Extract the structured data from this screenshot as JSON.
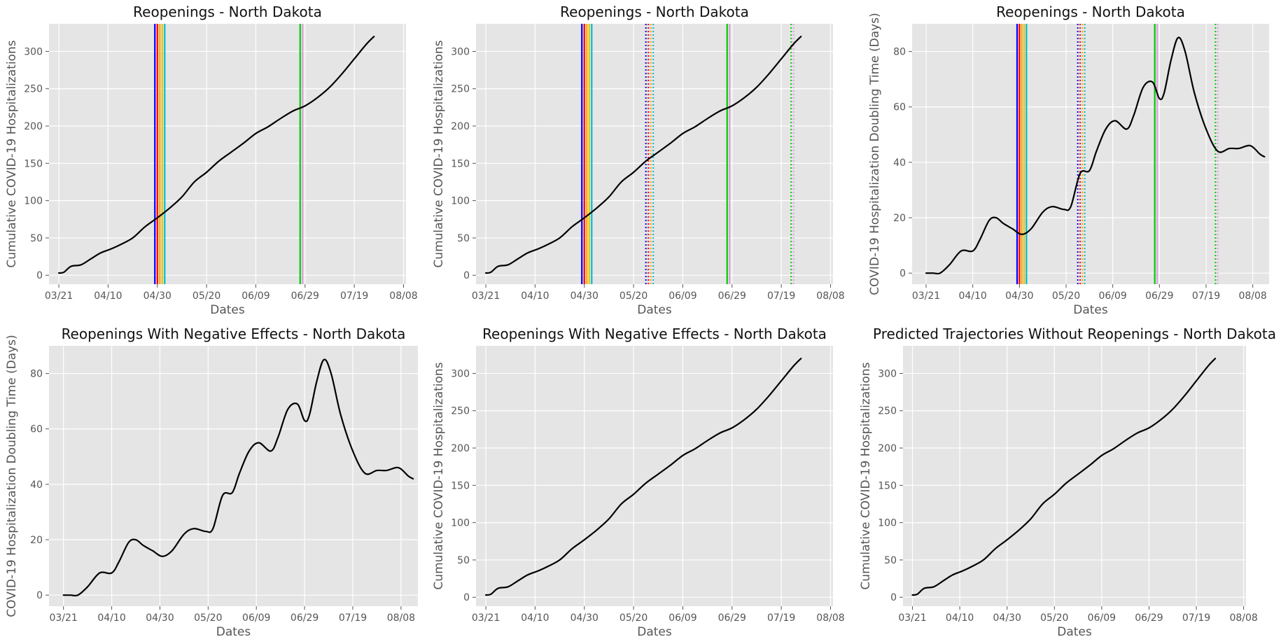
{
  "colors": {
    "panel_bg": "#e5e5e5",
    "grid": "#ffffff",
    "line": "#000000",
    "tick_text": "#555555",
    "title_text": "#111111"
  },
  "reference_lines": [
    {
      "date": "2020-04-29",
      "color": "#0000ff",
      "style": "solid"
    },
    {
      "date": "2020-04-30",
      "color": "#ff0000",
      "style": "solid"
    },
    {
      "date": "2020-05-01",
      "color": "#ffa500",
      "style": "solid"
    },
    {
      "date": "2020-05-02",
      "color": "#e6c700",
      "style": "solid"
    },
    {
      "date": "2020-05-03",
      "color": "#00bcd4",
      "style": "solid"
    },
    {
      "date": "2020-05-25",
      "color": "#0000ff",
      "style": "dotted"
    },
    {
      "date": "2020-05-26",
      "color": "#ff0000",
      "style": "dotted"
    },
    {
      "date": "2020-05-27",
      "color": "#ffa500",
      "style": "dotted"
    },
    {
      "date": "2020-05-28",
      "color": "#00bcd4",
      "style": "dotted"
    },
    {
      "date": "2020-06-27",
      "color": "#00cc00",
      "style": "solid"
    },
    {
      "date": "2020-06-28",
      "color": "#dda0dd",
      "style": "solid"
    },
    {
      "date": "2020-07-23",
      "color": "#00cc00",
      "style": "dotted"
    },
    {
      "date": "2020-07-24",
      "color": "#dda0dd",
      "style": "dotted"
    }
  ],
  "chart_data": [
    {
      "type": "line",
      "title": "Reopenings - North Dakota",
      "xlabel": "Dates",
      "ylabel": "Cumulative COVID-19 Hospitalizations",
      "xticks": [
        "03/21",
        "04/10",
        "04/30",
        "05/20",
        "06/09",
        "06/29",
        "07/19",
        "08/08"
      ],
      "yticks": [
        0,
        50,
        100,
        150,
        200,
        250,
        300
      ],
      "xlim": [
        "2020-03-17",
        "2020-08-09"
      ],
      "ylim": [
        -12,
        337
      ],
      "grid": true,
      "reference_line_dates": [
        "2020-04-29",
        "2020-04-30",
        "2020-05-01",
        "2020-05-02",
        "2020-05-03",
        "2020-06-27",
        "2020-06-28"
      ],
      "series": [
        {
          "x": [
            "2020-03-21",
            "2020-03-23",
            "2020-03-26",
            "2020-03-30",
            "2020-04-03",
            "2020-04-07",
            "2020-04-11",
            "2020-04-15",
            "2020-04-20",
            "2020-04-25",
            "2020-04-30",
            "2020-05-05",
            "2020-05-10",
            "2020-05-15",
            "2020-05-20",
            "2020-05-25",
            "2020-05-30",
            "2020-06-04",
            "2020-06-09",
            "2020-06-14",
            "2020-06-19",
            "2020-06-24",
            "2020-06-29",
            "2020-07-04",
            "2020-07-09",
            "2020-07-14",
            "2020-07-19",
            "2020-07-24",
            "2020-07-27"
          ],
          "y": [
            3,
            4,
            12,
            14,
            22,
            30,
            35,
            41,
            50,
            65,
            77,
            90,
            105,
            125,
            138,
            153,
            165,
            177,
            190,
            199,
            210,
            220,
            227,
            238,
            252,
            270,
            290,
            310,
            320
          ]
        }
      ]
    },
    {
      "type": "line",
      "title": "Reopenings - North Dakota",
      "xlabel": "Dates",
      "ylabel": "Cumulative COVID-19 Hospitalizations",
      "xticks": [
        "03/21",
        "04/10",
        "04/30",
        "05/20",
        "06/09",
        "06/29",
        "07/19",
        "08/08"
      ],
      "yticks": [
        0,
        50,
        100,
        150,
        200,
        250,
        300
      ],
      "xlim": [
        "2020-03-17",
        "2020-08-09"
      ],
      "ylim": [
        -12,
        337
      ],
      "grid": true,
      "reference_line_dates": [
        "2020-04-29",
        "2020-04-30",
        "2020-05-01",
        "2020-05-02",
        "2020-05-03",
        "2020-05-25",
        "2020-05-26",
        "2020-05-27",
        "2020-05-28",
        "2020-06-27",
        "2020-06-28",
        "2020-07-23",
        "2020-07-24"
      ],
      "series": [
        {
          "x": [
            "2020-03-21",
            "2020-03-23",
            "2020-03-26",
            "2020-03-30",
            "2020-04-03",
            "2020-04-07",
            "2020-04-11",
            "2020-04-15",
            "2020-04-20",
            "2020-04-25",
            "2020-04-30",
            "2020-05-05",
            "2020-05-10",
            "2020-05-15",
            "2020-05-20",
            "2020-05-25",
            "2020-05-30",
            "2020-06-04",
            "2020-06-09",
            "2020-06-14",
            "2020-06-19",
            "2020-06-24",
            "2020-06-29",
            "2020-07-04",
            "2020-07-09",
            "2020-07-14",
            "2020-07-19",
            "2020-07-24",
            "2020-07-27"
          ],
          "y": [
            3,
            4,
            12,
            14,
            22,
            30,
            35,
            41,
            50,
            65,
            77,
            90,
            105,
            125,
            138,
            153,
            165,
            177,
            190,
            199,
            210,
            220,
            227,
            238,
            252,
            270,
            290,
            310,
            320
          ]
        }
      ]
    },
    {
      "type": "line",
      "title": "Reopenings - North Dakota",
      "xlabel": "Dates",
      "ylabel": "COVID-19 Hospitalization Doubling Time (Days)",
      "xticks": [
        "03/21",
        "04/10",
        "04/30",
        "05/20",
        "06/09",
        "06/29",
        "07/19",
        "08/08"
      ],
      "yticks": [
        0,
        20,
        40,
        60,
        80
      ],
      "xlim": [
        "2020-03-15",
        "2020-08-15"
      ],
      "ylim": [
        -4,
        90
      ],
      "grid": true,
      "reference_line_dates": [
        "2020-04-29",
        "2020-04-30",
        "2020-05-01",
        "2020-05-02",
        "2020-05-03",
        "2020-05-25",
        "2020-05-26",
        "2020-05-27",
        "2020-05-28",
        "2020-06-27",
        "2020-06-28",
        "2020-07-23",
        "2020-07-24"
      ],
      "series": [
        {
          "x": [
            "2020-03-21",
            "2020-03-24",
            "2020-03-27",
            "2020-03-31",
            "2020-04-05",
            "2020-04-10",
            "2020-04-13",
            "2020-04-17",
            "2020-04-20",
            "2020-04-23",
            "2020-04-27",
            "2020-05-01",
            "2020-05-05",
            "2020-05-10",
            "2020-05-14",
            "2020-05-19",
            "2020-05-22",
            "2020-05-26",
            "2020-05-30",
            "2020-06-02",
            "2020-06-06",
            "2020-06-10",
            "2020-06-15",
            "2020-06-18",
            "2020-06-22",
            "2020-06-26",
            "2020-06-29",
            "2020-07-01",
            "2020-07-04",
            "2020-07-07",
            "2020-07-10",
            "2020-07-14",
            "2020-07-19",
            "2020-07-24",
            "2020-07-29",
            "2020-08-02",
            "2020-08-07",
            "2020-08-11",
            "2020-08-13"
          ],
          "y": [
            0,
            0,
            0,
            3,
            8,
            8,
            12,
            19,
            20,
            18,
            16,
            14,
            16,
            22,
            24,
            23,
            24,
            36,
            37,
            44,
            52,
            55,
            52,
            57,
            67,
            69,
            63,
            65,
            77,
            85,
            80,
            65,
            52,
            44,
            45,
            45,
            46,
            43,
            42
          ]
        }
      ]
    },
    {
      "type": "line",
      "title": "Reopenings With Negative Effects - North Dakota",
      "xlabel": "Dates",
      "ylabel": "COVID-19 Hospitalization Doubling Time (Days)",
      "xticks": [
        "03/21",
        "04/10",
        "04/30",
        "05/20",
        "06/09",
        "06/29",
        "07/19",
        "08/08"
      ],
      "yticks": [
        0,
        20,
        40,
        60,
        80
      ],
      "xlim": [
        "2020-03-15",
        "2020-08-15"
      ],
      "ylim": [
        -4,
        90
      ],
      "grid": true,
      "reference_line_dates": [],
      "series": [
        {
          "x": [
            "2020-03-21",
            "2020-03-24",
            "2020-03-27",
            "2020-03-31",
            "2020-04-05",
            "2020-04-10",
            "2020-04-13",
            "2020-04-17",
            "2020-04-20",
            "2020-04-23",
            "2020-04-27",
            "2020-05-01",
            "2020-05-05",
            "2020-05-10",
            "2020-05-14",
            "2020-05-19",
            "2020-05-22",
            "2020-05-26",
            "2020-05-30",
            "2020-06-02",
            "2020-06-06",
            "2020-06-10",
            "2020-06-15",
            "2020-06-18",
            "2020-06-22",
            "2020-06-26",
            "2020-06-29",
            "2020-07-01",
            "2020-07-04",
            "2020-07-07",
            "2020-07-10",
            "2020-07-14",
            "2020-07-19",
            "2020-07-24",
            "2020-07-29",
            "2020-08-02",
            "2020-08-07",
            "2020-08-11",
            "2020-08-13"
          ],
          "y": [
            0,
            0,
            0,
            3,
            8,
            8,
            12,
            19,
            20,
            18,
            16,
            14,
            16,
            22,
            24,
            23,
            24,
            36,
            37,
            44,
            52,
            55,
            52,
            57,
            67,
            69,
            63,
            65,
            77,
            85,
            80,
            65,
            52,
            44,
            45,
            45,
            46,
            43,
            42
          ]
        }
      ]
    },
    {
      "type": "line",
      "title": "Reopenings With Negative Effects - North Dakota",
      "xlabel": "Dates",
      "ylabel": "Cumulative COVID-19 Hospitalizations",
      "xticks": [
        "03/21",
        "04/10",
        "04/30",
        "05/20",
        "06/09",
        "06/29",
        "07/19",
        "08/08"
      ],
      "yticks": [
        0,
        50,
        100,
        150,
        200,
        250,
        300
      ],
      "xlim": [
        "2020-03-17",
        "2020-08-09"
      ],
      "ylim": [
        -12,
        337
      ],
      "grid": true,
      "reference_line_dates": [],
      "series": [
        {
          "x": [
            "2020-03-21",
            "2020-03-23",
            "2020-03-26",
            "2020-03-30",
            "2020-04-03",
            "2020-04-07",
            "2020-04-11",
            "2020-04-15",
            "2020-04-20",
            "2020-04-25",
            "2020-04-30",
            "2020-05-05",
            "2020-05-10",
            "2020-05-15",
            "2020-05-20",
            "2020-05-25",
            "2020-05-30",
            "2020-06-04",
            "2020-06-09",
            "2020-06-14",
            "2020-06-19",
            "2020-06-24",
            "2020-06-29",
            "2020-07-04",
            "2020-07-09",
            "2020-07-14",
            "2020-07-19",
            "2020-07-24",
            "2020-07-27"
          ],
          "y": [
            3,
            4,
            12,
            14,
            22,
            30,
            35,
            41,
            50,
            65,
            77,
            90,
            105,
            125,
            138,
            153,
            165,
            177,
            190,
            199,
            210,
            220,
            227,
            238,
            252,
            270,
            290,
            310,
            320
          ]
        }
      ]
    },
    {
      "type": "line",
      "title": "Predicted Trajectories Without Reopenings - North Dakota",
      "xlabel": "Dates",
      "ylabel": "Cumulative COVID-19 Hospitalizations",
      "xticks": [
        "03/21",
        "04/10",
        "04/30",
        "05/20",
        "06/09",
        "06/29",
        "07/19",
        "08/08"
      ],
      "yticks": [
        0,
        50,
        100,
        150,
        200,
        250,
        300
      ],
      "xlim": [
        "2020-03-17",
        "2020-08-09"
      ],
      "ylim": [
        -12,
        337
      ],
      "grid": true,
      "reference_line_dates": [],
      "series": [
        {
          "x": [
            "2020-03-21",
            "2020-03-23",
            "2020-03-26",
            "2020-03-30",
            "2020-04-03",
            "2020-04-07",
            "2020-04-11",
            "2020-04-15",
            "2020-04-20",
            "2020-04-25",
            "2020-04-30",
            "2020-05-05",
            "2020-05-10",
            "2020-05-15",
            "2020-05-20",
            "2020-05-25",
            "2020-05-30",
            "2020-06-04",
            "2020-06-09",
            "2020-06-14",
            "2020-06-19",
            "2020-06-24",
            "2020-06-29",
            "2020-07-04",
            "2020-07-09",
            "2020-07-14",
            "2020-07-19",
            "2020-07-24",
            "2020-07-27"
          ],
          "y": [
            3,
            4,
            12,
            14,
            22,
            30,
            35,
            41,
            50,
            65,
            77,
            90,
            105,
            125,
            138,
            153,
            165,
            177,
            190,
            199,
            210,
            220,
            227,
            238,
            252,
            270,
            290,
            310,
            320
          ]
        }
      ]
    }
  ]
}
